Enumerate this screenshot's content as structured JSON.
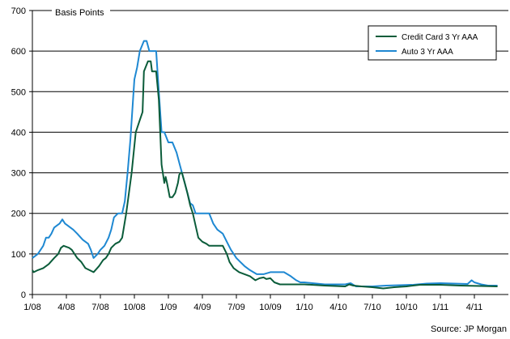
{
  "chart_data": {
    "type": "line",
    "ylabel": "Basis Points",
    "source": "Source: JP Morgan",
    "ylim": [
      0,
      700
    ],
    "y_ticks": [
      0,
      100,
      200,
      300,
      400,
      500,
      600,
      700
    ],
    "grid": "horizontal",
    "legend_position": "top-right",
    "x_ticks": [
      {
        "label": "1/08",
        "x": 2008.0
      },
      {
        "label": "4/08",
        "x": 2008.25
      },
      {
        "label": "7/08",
        "x": 2008.5
      },
      {
        "label": "10/08",
        "x": 2008.75
      },
      {
        "label": "1/09",
        "x": 2009.0
      },
      {
        "label": "4/09",
        "x": 2009.25
      },
      {
        "label": "7/09",
        "x": 2009.5
      },
      {
        "label": "10/09",
        "x": 2009.75
      },
      {
        "label": "1/10",
        "x": 2010.0
      },
      {
        "label": "4/10",
        "x": 2010.25
      },
      {
        "label": "7/10",
        "x": 2010.5
      },
      {
        "label": "10/10",
        "x": 2010.75
      },
      {
        "label": "1/11",
        "x": 2011.0
      },
      {
        "label": "4/11",
        "x": 2011.25
      }
    ],
    "series": [
      {
        "name": "Credit Card 3 Yr AAA",
        "color": "#0b5c3a",
        "points": [
          [
            2008.0,
            60
          ],
          [
            2008.01,
            55
          ],
          [
            2008.04,
            60
          ],
          [
            2008.08,
            65
          ],
          [
            2008.12,
            75
          ],
          [
            2008.16,
            90
          ],
          [
            2008.19,
            100
          ],
          [
            2008.21,
            115
          ],
          [
            2008.23,
            120
          ],
          [
            2008.27,
            115
          ],
          [
            2008.29,
            110
          ],
          [
            2008.31,
            100
          ],
          [
            2008.33,
            90
          ],
          [
            2008.36,
            80
          ],
          [
            2008.39,
            65
          ],
          [
            2008.42,
            60
          ],
          [
            2008.45,
            55
          ],
          [
            2008.49,
            70
          ],
          [
            2008.52,
            85
          ],
          [
            2008.54,
            90
          ],
          [
            2008.56,
            100
          ],
          [
            2008.58,
            115
          ],
          [
            2008.61,
            125
          ],
          [
            2008.64,
            130
          ],
          [
            2008.66,
            140
          ],
          [
            2008.69,
            200
          ],
          [
            2008.73,
            300
          ],
          [
            2008.76,
            400
          ],
          [
            2008.79,
            430
          ],
          [
            2008.81,
            450
          ],
          [
            2008.82,
            550
          ],
          [
            2008.85,
            575
          ],
          [
            2008.87,
            575
          ],
          [
            2008.88,
            550
          ],
          [
            2008.9,
            550
          ],
          [
            2008.91,
            550
          ],
          [
            2008.93,
            480
          ],
          [
            2008.95,
            320
          ],
          [
            2008.97,
            275
          ],
          [
            2008.98,
            290
          ],
          [
            2008.99,
            275
          ],
          [
            2009.01,
            240
          ],
          [
            2009.03,
            240
          ],
          [
            2009.05,
            250
          ],
          [
            2009.07,
            275
          ],
          [
            2009.08,
            295
          ],
          [
            2009.09,
            300
          ],
          [
            2009.1,
            300
          ],
          [
            2009.12,
            275
          ],
          [
            2009.14,
            250
          ],
          [
            2009.16,
            220
          ],
          [
            2009.18,
            200
          ],
          [
            2009.2,
            170
          ],
          [
            2009.22,
            140
          ],
          [
            2009.25,
            130
          ],
          [
            2009.28,
            125
          ],
          [
            2009.3,
            120
          ],
          [
            2009.35,
            120
          ],
          [
            2009.4,
            120
          ],
          [
            2009.43,
            100
          ],
          [
            2009.45,
            80
          ],
          [
            2009.48,
            65
          ],
          [
            2009.52,
            55
          ],
          [
            2009.56,
            50
          ],
          [
            2009.6,
            45
          ],
          [
            2009.64,
            35
          ],
          [
            2009.67,
            40
          ],
          [
            2009.7,
            42
          ],
          [
            2009.72,
            38
          ],
          [
            2009.75,
            40
          ],
          [
            2009.78,
            30
          ],
          [
            2009.82,
            25
          ],
          [
            2009.86,
            25
          ],
          [
            2010.0,
            25
          ],
          [
            2010.15,
            22
          ],
          [
            2010.3,
            20
          ],
          [
            2010.33,
            25
          ],
          [
            2010.36,
            22
          ],
          [
            2010.42,
            20
          ],
          [
            2010.5,
            18
          ],
          [
            2010.58,
            15
          ],
          [
            2010.66,
            18
          ],
          [
            2010.75,
            20
          ],
          [
            2010.85,
            24
          ],
          [
            2011.0,
            24
          ],
          [
            2011.15,
            22
          ],
          [
            2011.3,
            21
          ],
          [
            2011.42,
            20
          ]
        ]
      },
      {
        "name": "Auto 3 Yr AAA",
        "color": "#1e88d2",
        "points": [
          [
            2008.0,
            90
          ],
          [
            2008.02,
            95
          ],
          [
            2008.04,
            100
          ],
          [
            2008.06,
            110
          ],
          [
            2008.08,
            120
          ],
          [
            2008.1,
            140
          ],
          [
            2008.12,
            140
          ],
          [
            2008.14,
            150
          ],
          [
            2008.16,
            165
          ],
          [
            2008.18,
            170
          ],
          [
            2008.2,
            175
          ],
          [
            2008.22,
            185
          ],
          [
            2008.24,
            175
          ],
          [
            2008.26,
            170
          ],
          [
            2008.28,
            165
          ],
          [
            2008.3,
            160
          ],
          [
            2008.33,
            150
          ],
          [
            2008.37,
            135
          ],
          [
            2008.41,
            125
          ],
          [
            2008.43,
            110
          ],
          [
            2008.45,
            90
          ],
          [
            2008.48,
            100
          ],
          [
            2008.5,
            110
          ],
          [
            2008.53,
            120
          ],
          [
            2008.56,
            140
          ],
          [
            2008.58,
            160
          ],
          [
            2008.6,
            190
          ],
          [
            2008.63,
            200
          ],
          [
            2008.66,
            200
          ],
          [
            2008.68,
            230
          ],
          [
            2008.7,
            300
          ],
          [
            2008.72,
            380
          ],
          [
            2008.75,
            530
          ],
          [
            2008.77,
            560
          ],
          [
            2008.79,
            600
          ],
          [
            2008.82,
            625
          ],
          [
            2008.84,
            625
          ],
          [
            2008.86,
            600
          ],
          [
            2008.88,
            600
          ],
          [
            2008.91,
            600
          ],
          [
            2008.93,
            500
          ],
          [
            2008.95,
            400
          ],
          [
            2008.97,
            400
          ],
          [
            2009.0,
            375
          ],
          [
            2009.03,
            375
          ],
          [
            2009.06,
            350
          ],
          [
            2009.08,
            325
          ],
          [
            2009.1,
            300
          ],
          [
            2009.12,
            275
          ],
          [
            2009.14,
            250
          ],
          [
            2009.16,
            225
          ],
          [
            2009.18,
            220
          ],
          [
            2009.2,
            200
          ],
          [
            2009.25,
            200
          ],
          [
            2009.3,
            200
          ],
          [
            2009.33,
            175
          ],
          [
            2009.36,
            160
          ],
          [
            2009.4,
            150
          ],
          [
            2009.43,
            130
          ],
          [
            2009.46,
            110
          ],
          [
            2009.5,
            90
          ],
          [
            2009.53,
            80
          ],
          [
            2009.56,
            70
          ],
          [
            2009.6,
            60
          ],
          [
            2009.65,
            50
          ],
          [
            2009.7,
            50
          ],
          [
            2009.75,
            55
          ],
          [
            2009.78,
            55
          ],
          [
            2009.85,
            55
          ],
          [
            2009.9,
            45
          ],
          [
            2009.94,
            35
          ],
          [
            2009.97,
            30
          ],
          [
            2010.0,
            30
          ],
          [
            2010.15,
            25
          ],
          [
            2010.3,
            25
          ],
          [
            2010.34,
            28
          ],
          [
            2010.38,
            20
          ],
          [
            2010.5,
            20
          ],
          [
            2010.6,
            22
          ],
          [
            2010.7,
            23
          ],
          [
            2010.8,
            24
          ],
          [
            2010.9,
            27
          ],
          [
            2011.0,
            28
          ],
          [
            2011.1,
            27
          ],
          [
            2011.2,
            26
          ],
          [
            2011.23,
            35
          ],
          [
            2011.25,
            30
          ],
          [
            2011.3,
            25
          ],
          [
            2011.35,
            22
          ],
          [
            2011.42,
            22
          ]
        ]
      }
    ]
  }
}
